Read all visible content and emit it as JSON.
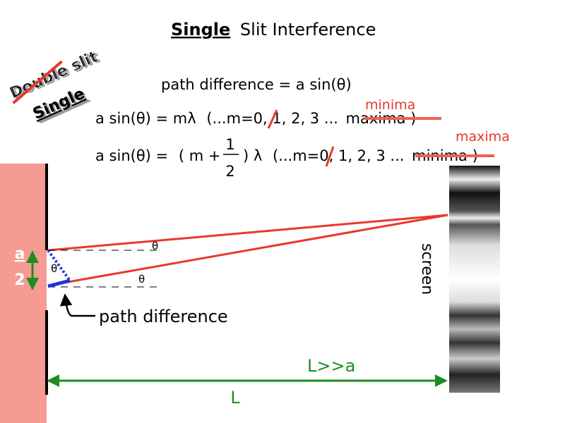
{
  "title": {
    "emphasis": "Single",
    "rest": "Slit Interference"
  },
  "corner_labels": {
    "struck": "Double slit",
    "replacement": "Single"
  },
  "equations": {
    "path_difference": "path difference = a sin(θ)",
    "minima_condition": {
      "lhs": "a sin(θ) = mλ",
      "range": "(...m=0, 1, 2, 3 ...",
      "struck": "maxima",
      "close": ")",
      "correction": "minima"
    },
    "maxima_condition": {
      "lhs": "a sin(θ) =",
      "factor_left": "(  m +",
      "numerator": "1",
      "denominator": "2",
      "factor_right": ")  λ",
      "range": "(...m=0, 1, 2, 3 ...",
      "struck": "minima",
      "close": ")",
      "correction": "maxima"
    }
  },
  "diagram": {
    "half_width_numerator": "a",
    "half_width_denominator": "2",
    "angle_labels": [
      "θ",
      "θ",
      "θ"
    ],
    "path_difference_label": "path difference",
    "screen_label": "screen",
    "distance_condition": "L>>a",
    "distance_label": "L"
  }
}
